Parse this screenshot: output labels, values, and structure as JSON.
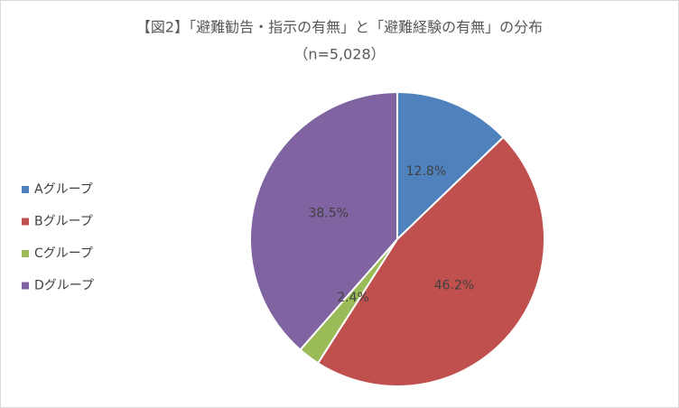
{
  "chart_data": {
    "type": "pie",
    "title": "【図2】「避難勧告・指示の有無」と「避難経験の有無」の分布",
    "subtitle": "（n=5,028）",
    "categories": [
      "Aグループ",
      "Bグループ",
      "Cグループ",
      "Dグループ"
    ],
    "values": [
      12.8,
      46.2,
      2.4,
      38.5
    ],
    "value_labels": [
      "12.8%",
      "46.2%",
      "2.4%",
      "38.5%"
    ],
    "colors": [
      "#4f81bd",
      "#c0504d",
      "#9bbb59",
      "#8064a2"
    ],
    "legend": "left"
  }
}
